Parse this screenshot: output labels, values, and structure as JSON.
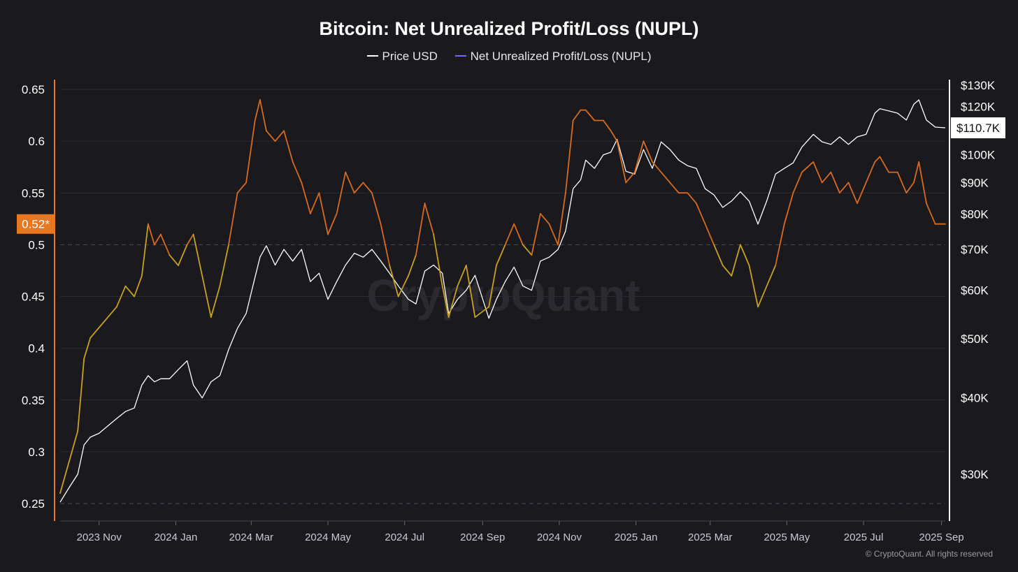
{
  "chart_data": {
    "type": "line",
    "title": "Bitcoin: Net Unrealized Profit/Loss (NUPL)",
    "legend": [
      {
        "name": "Price USD",
        "color": "#ffffff"
      },
      {
        "name": "Net Unrealized Profit/Loss (NUPL)",
        "color": "#6b6bff"
      }
    ],
    "x_ticks": [
      "2023 Nov",
      "2024 Jan",
      "2024 Mar",
      "2024 May",
      "2024 Jul",
      "2024 Sep",
      "2024 Nov",
      "2025 Jan",
      "2025 Mar",
      "2025 May",
      "2025 Jul",
      "2025 Sep"
    ],
    "x_range": [
      "2023-10-01",
      "2025-09-04"
    ],
    "left_axis": {
      "ylim": [
        0.25,
        0.655
      ],
      "ticks": [
        "0.65",
        "0.6",
        "0.55",
        "0.5",
        "0.45",
        "0.4",
        "0.35",
        "0.3",
        "0.25"
      ],
      "tick_values": [
        0.65,
        0.6,
        0.55,
        0.5,
        0.45,
        0.4,
        0.35,
        0.3,
        0.25
      ],
      "current_label": "0.52*",
      "current_value": 0.52,
      "reference_line": 0.5
    },
    "right_axis": {
      "scale": "log",
      "ticks": [
        "$130K",
        "$120K",
        "$110.7K",
        "$100K",
        "$90K",
        "$80K",
        "$70K",
        "$60K",
        "$50K",
        "$40K",
        "$30K"
      ],
      "tick_values": [
        130000,
        120000,
        110700,
        100000,
        90000,
        80000,
        70000,
        60000,
        50000,
        40000,
        30000
      ],
      "current_label": "$110.7K",
      "current_value": 110700
    },
    "series": [
      {
        "name": "Net Unrealized Profit/Loss (NUPL)",
        "color_low": "#c8a020",
        "color_high": "#d76a1f",
        "threshold": 0.5,
        "x": [
          "2023-10-01",
          "2023-10-08",
          "2023-10-15",
          "2023-10-20",
          "2023-10-25",
          "2023-11-01",
          "2023-11-08",
          "2023-11-15",
          "2023-11-22",
          "2023-11-29",
          "2023-12-05",
          "2023-12-10",
          "2023-12-15",
          "2023-12-20",
          "2023-12-27",
          "2024-01-03",
          "2024-01-10",
          "2024-01-15",
          "2024-01-22",
          "2024-01-29",
          "2024-02-05",
          "2024-02-12",
          "2024-02-19",
          "2024-02-26",
          "2024-03-04",
          "2024-03-08",
          "2024-03-13",
          "2024-03-20",
          "2024-03-27",
          "2024-04-03",
          "2024-04-10",
          "2024-04-17",
          "2024-04-24",
          "2024-05-01",
          "2024-05-08",
          "2024-05-15",
          "2024-05-22",
          "2024-05-29",
          "2024-06-05",
          "2024-06-12",
          "2024-06-19",
          "2024-06-26",
          "2024-07-04",
          "2024-07-10",
          "2024-07-17",
          "2024-07-24",
          "2024-07-31",
          "2024-08-05",
          "2024-08-12",
          "2024-08-19",
          "2024-08-26",
          "2024-09-06",
          "2024-09-12",
          "2024-09-19",
          "2024-09-26",
          "2024-10-03",
          "2024-10-10",
          "2024-10-17",
          "2024-10-24",
          "2024-10-31",
          "2024-11-06",
          "2024-11-12",
          "2024-11-18",
          "2024-11-22",
          "2024-11-29",
          "2024-12-06",
          "2024-12-12",
          "2024-12-17",
          "2024-12-24",
          "2024-12-31",
          "2025-01-07",
          "2025-01-14",
          "2025-01-21",
          "2025-01-28",
          "2025-02-04",
          "2025-02-11",
          "2025-02-18",
          "2025-02-25",
          "2025-03-04",
          "2025-03-11",
          "2025-03-18",
          "2025-03-25",
          "2025-04-01",
          "2025-04-08",
          "2025-04-15",
          "2025-04-22",
          "2025-04-29",
          "2025-05-06",
          "2025-05-13",
          "2025-05-22",
          "2025-05-29",
          "2025-06-05",
          "2025-06-12",
          "2025-06-19",
          "2025-06-26",
          "2025-07-03",
          "2025-07-10",
          "2025-07-14",
          "2025-07-21",
          "2025-07-28",
          "2025-08-04",
          "2025-08-10",
          "2025-08-14",
          "2025-08-20",
          "2025-08-27",
          "2025-09-04"
        ],
        "values": [
          0.26,
          0.29,
          0.32,
          0.39,
          0.41,
          0.42,
          0.43,
          0.44,
          0.46,
          0.45,
          0.47,
          0.52,
          0.5,
          0.51,
          0.49,
          0.48,
          0.5,
          0.51,
          0.47,
          0.43,
          0.46,
          0.5,
          0.55,
          0.56,
          0.62,
          0.64,
          0.61,
          0.6,
          0.61,
          0.58,
          0.56,
          0.53,
          0.55,
          0.51,
          0.53,
          0.57,
          0.55,
          0.56,
          0.55,
          0.52,
          0.48,
          0.45,
          0.47,
          0.49,
          0.54,
          0.51,
          0.46,
          0.43,
          0.46,
          0.48,
          0.43,
          0.44,
          0.48,
          0.5,
          0.52,
          0.5,
          0.49,
          0.53,
          0.52,
          0.5,
          0.55,
          0.62,
          0.63,
          0.63,
          0.62,
          0.62,
          0.61,
          0.6,
          0.56,
          0.57,
          0.6,
          0.58,
          0.57,
          0.56,
          0.55,
          0.55,
          0.54,
          0.52,
          0.5,
          0.48,
          0.47,
          0.5,
          0.48,
          0.44,
          0.46,
          0.48,
          0.52,
          0.55,
          0.57,
          0.58,
          0.56,
          0.57,
          0.55,
          0.56,
          0.54,
          0.56,
          0.58,
          0.585,
          0.57,
          0.57,
          0.55,
          0.56,
          0.58,
          0.54,
          0.52,
          0.52
        ]
      },
      {
        "name": "Price USD",
        "color": "#ffffff",
        "x": [
          "2023-10-01",
          "2023-10-08",
          "2023-10-15",
          "2023-10-20",
          "2023-10-25",
          "2023-11-01",
          "2023-11-08",
          "2023-11-15",
          "2023-11-22",
          "2023-11-29",
          "2023-12-05",
          "2023-12-10",
          "2023-12-15",
          "2023-12-20",
          "2023-12-27",
          "2024-01-03",
          "2024-01-10",
          "2024-01-15",
          "2024-01-22",
          "2024-01-29",
          "2024-02-05",
          "2024-02-12",
          "2024-02-19",
          "2024-02-26",
          "2024-03-04",
          "2024-03-08",
          "2024-03-13",
          "2024-03-20",
          "2024-03-27",
          "2024-04-03",
          "2024-04-10",
          "2024-04-17",
          "2024-04-24",
          "2024-05-01",
          "2024-05-08",
          "2024-05-15",
          "2024-05-22",
          "2024-05-29",
          "2024-06-05",
          "2024-06-12",
          "2024-06-19",
          "2024-06-26",
          "2024-07-04",
          "2024-07-10",
          "2024-07-17",
          "2024-07-24",
          "2024-07-31",
          "2024-08-05",
          "2024-08-12",
          "2024-08-19",
          "2024-08-26",
          "2024-09-06",
          "2024-09-12",
          "2024-09-19",
          "2024-09-26",
          "2024-10-03",
          "2024-10-10",
          "2024-10-17",
          "2024-10-24",
          "2024-10-31",
          "2024-11-06",
          "2024-11-12",
          "2024-11-18",
          "2024-11-22",
          "2024-11-29",
          "2024-12-06",
          "2024-12-12",
          "2024-12-17",
          "2024-12-24",
          "2024-12-31",
          "2025-01-07",
          "2025-01-14",
          "2025-01-21",
          "2025-01-28",
          "2025-02-04",
          "2025-02-11",
          "2025-02-18",
          "2025-02-25",
          "2025-03-04",
          "2025-03-11",
          "2025-03-18",
          "2025-03-25",
          "2025-04-01",
          "2025-04-08",
          "2025-04-15",
          "2025-04-22",
          "2025-04-29",
          "2025-05-06",
          "2025-05-13",
          "2025-05-22",
          "2025-05-29",
          "2025-06-05",
          "2025-06-12",
          "2025-06-19",
          "2025-06-26",
          "2025-07-03",
          "2025-07-10",
          "2025-07-14",
          "2025-07-21",
          "2025-07-28",
          "2025-08-04",
          "2025-08-10",
          "2025-08-14",
          "2025-08-20",
          "2025-08-27",
          "2025-09-04"
        ],
        "values": [
          27000,
          28500,
          30000,
          33500,
          34500,
          35000,
          36000,
          37000,
          38000,
          38500,
          42000,
          43500,
          42500,
          43000,
          43000,
          44500,
          46000,
          42000,
          40000,
          42500,
          43500,
          48000,
          52000,
          55000,
          63000,
          68000,
          71000,
          66000,
          70000,
          67000,
          70000,
          62000,
          64000,
          58000,
          62000,
          66000,
          69000,
          68000,
          70000,
          67000,
          64000,
          61000,
          58000,
          57000,
          64500,
          66000,
          64000,
          55000,
          58000,
          60000,
          63500,
          54000,
          58000,
          62000,
          65500,
          61000,
          60000,
          67000,
          68000,
          70000,
          75000,
          88000,
          91000,
          98000,
          95000,
          100000,
          101000,
          106000,
          94000,
          93000,
          102000,
          95000,
          105000,
          102000,
          98000,
          96000,
          95000,
          88000,
          86000,
          82000,
          84000,
          87000,
          84000,
          77000,
          84000,
          93000,
          95000,
          97000,
          103000,
          108000,
          105000,
          104000,
          107000,
          104000,
          107000,
          108000,
          117000,
          119000,
          118000,
          117000,
          114000,
          121000,
          123000,
          114000,
          111000,
          110700
        ]
      }
    ],
    "watermark": "CryptoQuant",
    "copyright": "© CryptoQuant. All rights reserved"
  }
}
